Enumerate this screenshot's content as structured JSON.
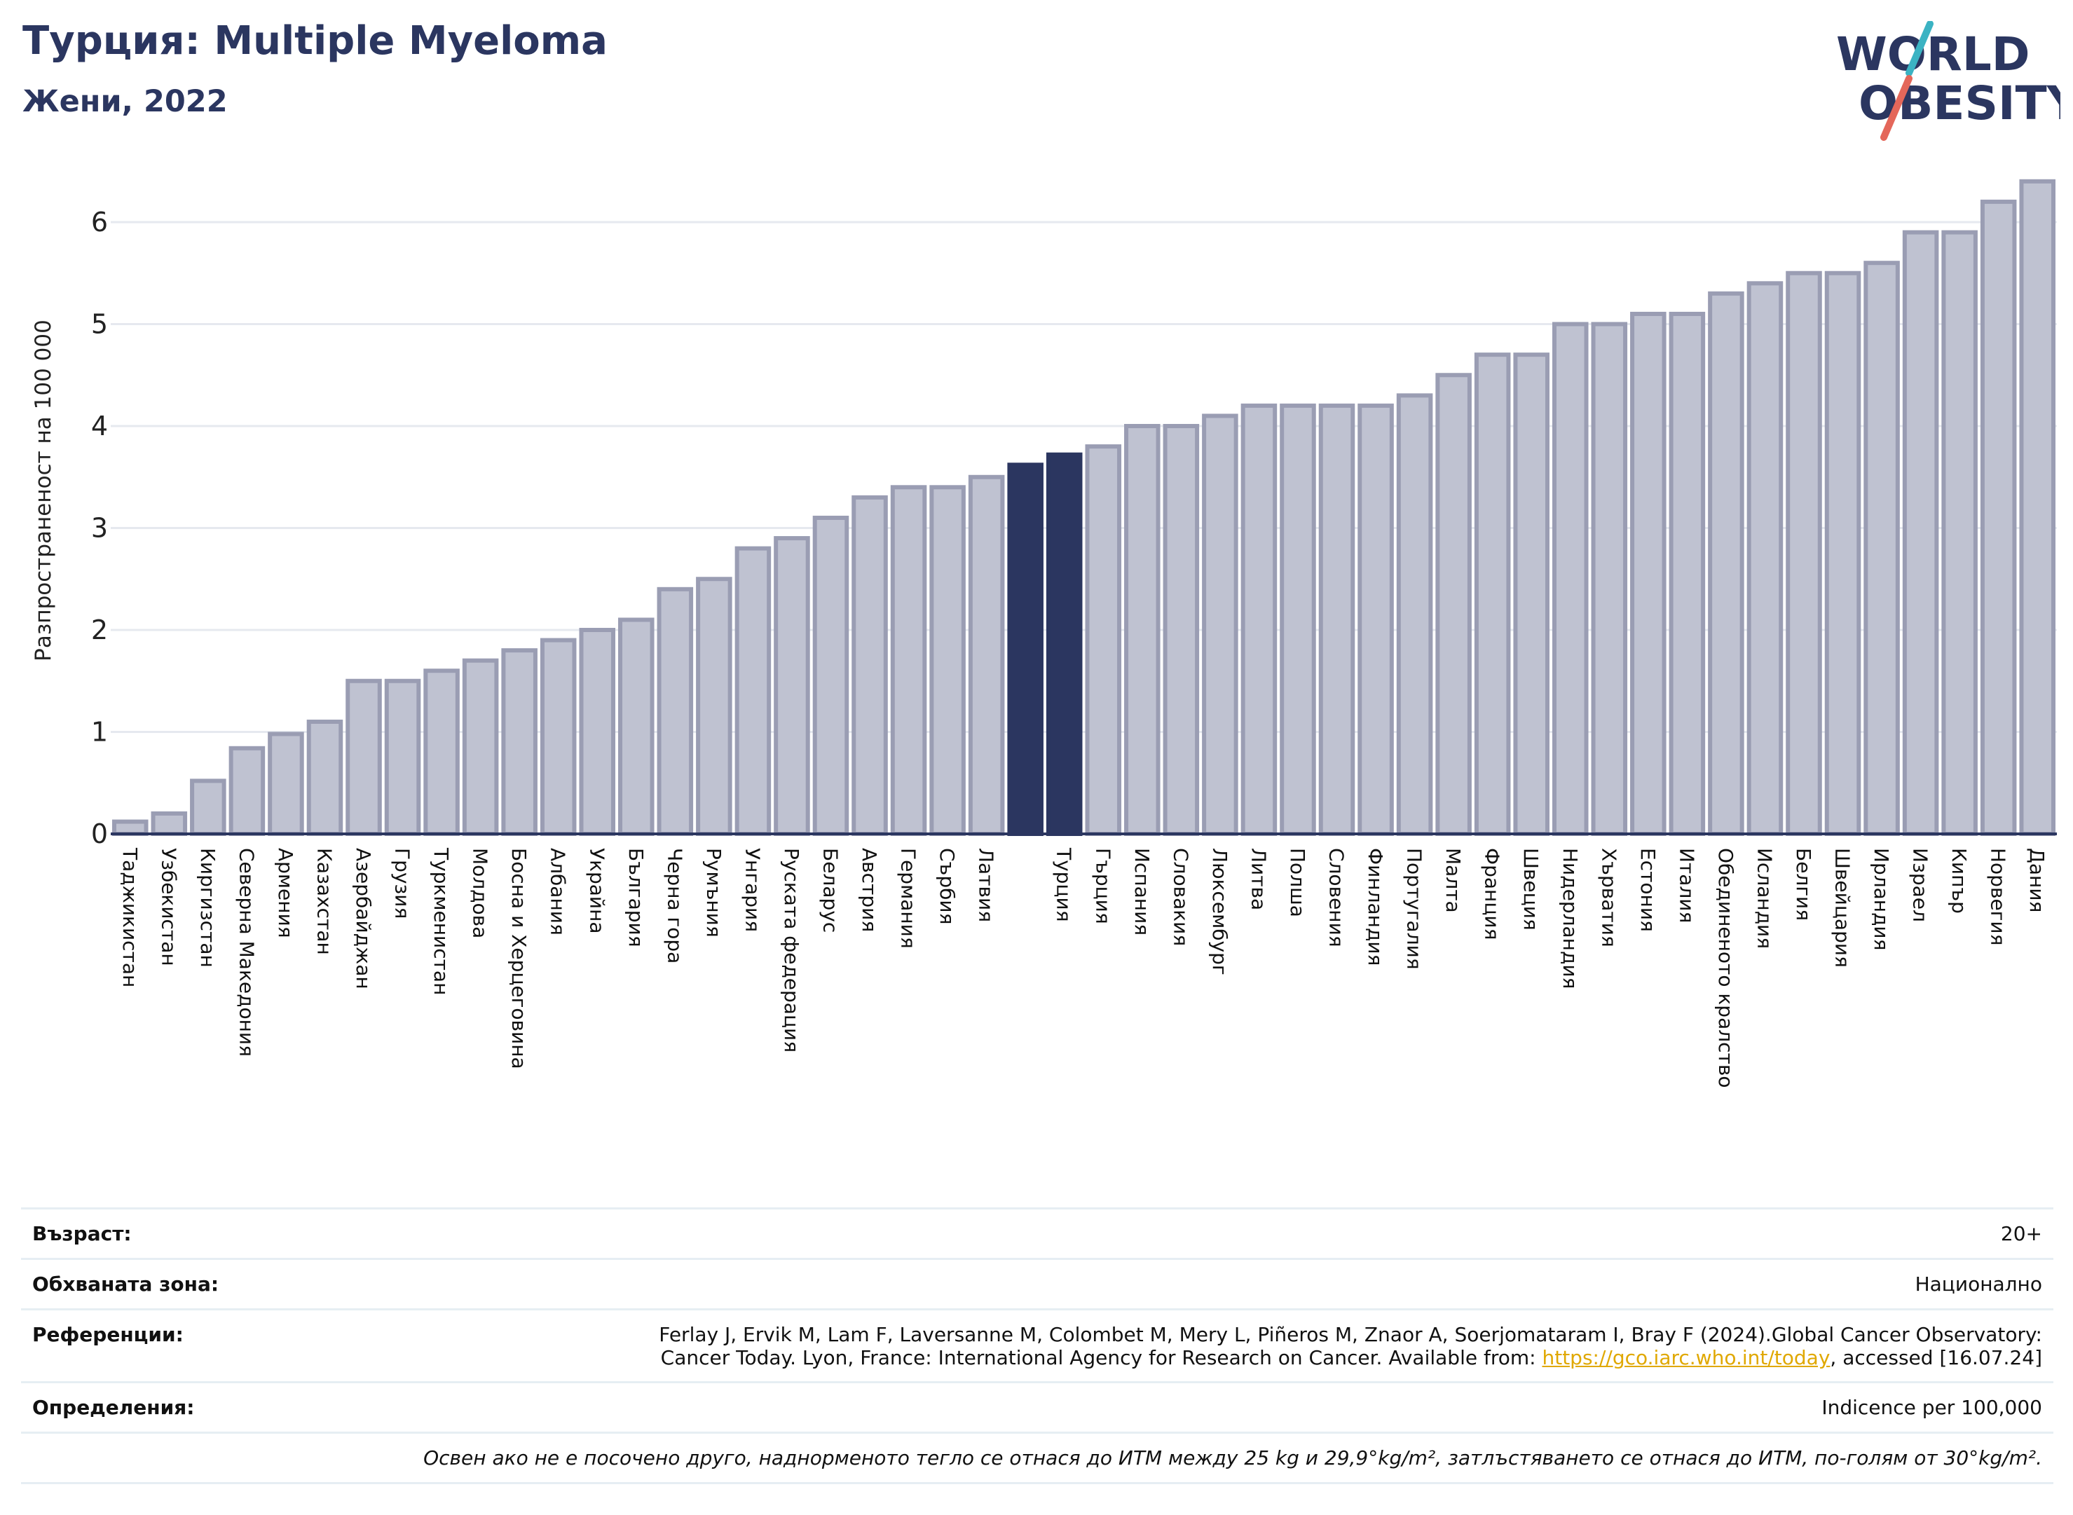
{
  "header": {
    "title": "Турция: Multiple Myeloma",
    "subtitle": "Жени, 2022",
    "logo_line1": "WORLD",
    "logo_line2": "OBESITY"
  },
  "colors": {
    "title": "#2b3660",
    "bar_default": "#bfc2d1",
    "bar_default_stroke": "#9a9db3",
    "bar_highlight": "#2b3660",
    "link": "#e0a800",
    "logo_teal": "#3bb3c3",
    "logo_red": "#e4675a"
  },
  "chart_data": {
    "type": "bar",
    "ylabel": "Разпространеност  на 100 000",
    "ylim": [
      0,
      6.6
    ],
    "yticks": [
      0,
      1,
      2,
      3,
      4,
      5,
      6
    ],
    "grid": true,
    "highlight": [
      "Турция"
    ],
    "categories": [
      "Таджикистан",
      "Узбекистан",
      "Киргизстан",
      "Северна Македония",
      "Армения",
      "Казахстан",
      "Азербайджан",
      "Грузия",
      "Туркменистан",
      "Молдова",
      "Босна и Херцеговина",
      "Албания",
      "Украйна",
      "България",
      "Черна гора",
      "Румъния",
      "Унгария",
      "Руската федерация",
      "Беларус",
      "Австрия",
      "Германия",
      "Сърбия",
      "Латвия",
      "",
      "Турция",
      "Гърция",
      "Испания",
      "Словакия",
      "Люксембург",
      "Литва",
      "Полша",
      "Словения",
      "Финландия",
      "Португалия",
      "Малта",
      "Франция",
      "Швеция",
      "Нидерландия",
      "Хърватия",
      "Естония",
      "Италия",
      "Обединеното кралство",
      "Исландия",
      "Белгия",
      "Швейцария",
      "Ирландия",
      "Израел",
      "Кипър",
      "Норвегия",
      "Дания"
    ],
    "values": [
      0.12,
      0.2,
      0.52,
      0.84,
      0.98,
      1.1,
      1.5,
      1.5,
      1.6,
      1.7,
      1.8,
      1.9,
      2.0,
      2.1,
      2.4,
      2.5,
      2.8,
      2.9,
      3.1,
      3.3,
      3.4,
      3.4,
      3.5,
      3.62,
      3.72,
      3.8,
      4.0,
      4.0,
      4.1,
      4.2,
      4.2,
      4.2,
      4.2,
      4.3,
      4.5,
      4.7,
      4.7,
      5.0,
      5.0,
      5.1,
      5.1,
      5.3,
      5.4,
      5.5,
      5.5,
      5.6,
      5.9,
      5.9,
      6.2,
      6.4
    ],
    "highlight_indices": [
      23,
      24
    ]
  },
  "info": {
    "age_label": "Възраст:",
    "age_value": "20+",
    "area_label": "Обхваната зона:",
    "area_value": "Национално",
    "ref_label": "Референции:",
    "ref_line1": "Ferlay J, Ervik M, Lam F, Laversanne M, Colombet M, Mery L, Piñeros M, Znaor A, Soerjomataram I, Bray F (2024).Global Cancer Observatory:",
    "ref_line2_pre": "Cancer Today. Lyon, France: International Agency for Research on Cancer. Available from: ",
    "ref_link": "https://gco.iarc.who.int/today",
    "ref_line2_post": ", accessed [16.07.24]",
    "def_label": "Определения:",
    "def_value": "Indicence per 100,000",
    "note": "Освен ако не е посочено друго, наднорменото тегло се отнася до ИТМ между 25 kg и 29,9°kg/m², затлъстяването се отнася до ИТМ, по-голям от 30°kg/m²."
  }
}
